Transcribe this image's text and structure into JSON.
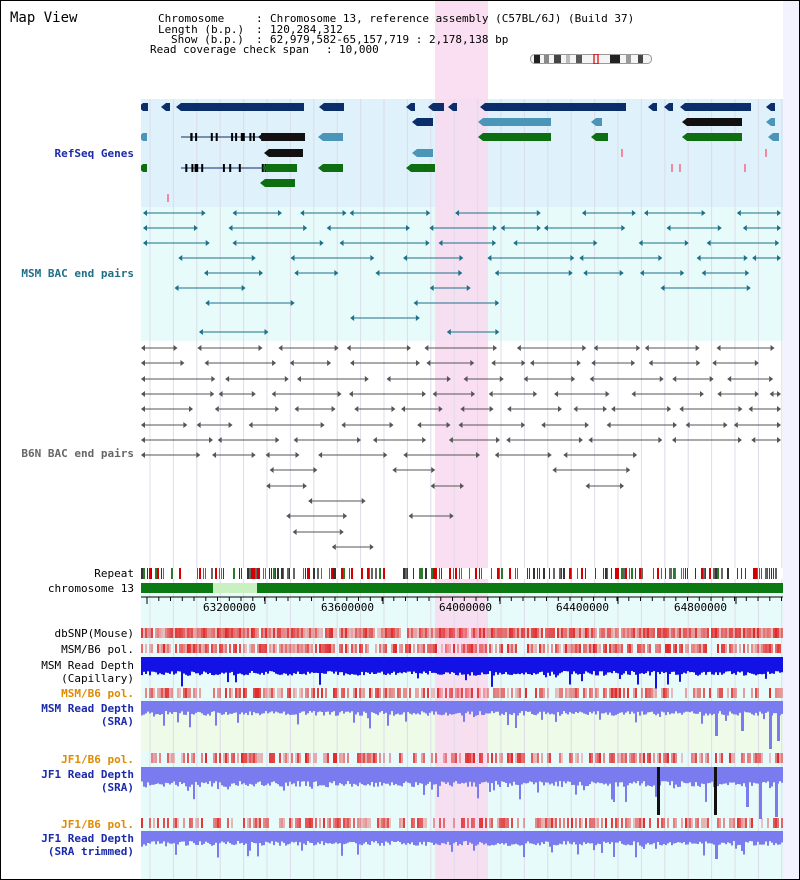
{
  "header": {
    "title": "Map View",
    "chromosome_key": "Chromosome",
    "chromosome_val": "Chromosome 13, reference assembly (C57BL/6J) (Build 37)",
    "length_key": "Length (b.p.)",
    "length_val": "120,284,312",
    "show_key": "Show (b.p.)",
    "show_val": "62,979,582-65,157,719 : 2,178,138 bp",
    "coverage_key": "Read coverage check span",
    "coverage_val": "10,000"
  },
  "tracks": {
    "refseq": "RefSeq Genes",
    "msm_bac": "MSM BAC end pairs",
    "b6n_bac": "B6N BAC end pairs",
    "repeat": "Repeat",
    "chromosome": "chromosome 13",
    "dbsnp": "dbSNP(Mouse)",
    "msm_b6_pol_1": "MSM/B6 pol.",
    "msm_depth_cap_1": "MSM Read Depth",
    "msm_depth_cap_2": "(Capillary)",
    "msm_b6_pol_2": "MSM/B6 pol.",
    "msm_depth_sra_1": "MSM Read Depth",
    "msm_depth_sra_2": "(SRA)",
    "jf1_b6_pol_1": "JF1/B6 pol.",
    "jf1_depth_sra_1": "JF1 Read Depth",
    "jf1_depth_sra_2": "(SRA)",
    "jf1_b6_pol_2": "JF1/B6 pol.",
    "jf1_depth_trim_1": "JF1 Read Depth",
    "jf1_depth_trim_2": "(SRA trimmed)"
  },
  "ruler": {
    "ticks": [
      "63200000",
      "63600000",
      "64000000",
      "64400000",
      "64800000"
    ]
  },
  "colors": {
    "refseq_bg": "#dff1fb",
    "msm_bac_bg": "#e8fbfb",
    "b6n_bac_bg": "#ffffff",
    "highlight": "#f9d9f0",
    "navy": "#0b2e6b",
    "teal": "#4a95b8",
    "green": "#0e6e12",
    "msm_line": "#1d6f8a",
    "b6n_line": "#555555",
    "depth_blue": "#1010e0",
    "depth_light": "#7f7ff2",
    "snp_red": "#e86060",
    "label_blue": "#1a2aa8",
    "label_orange": "#e08a00",
    "label_teal": "#1f6f86"
  }
}
